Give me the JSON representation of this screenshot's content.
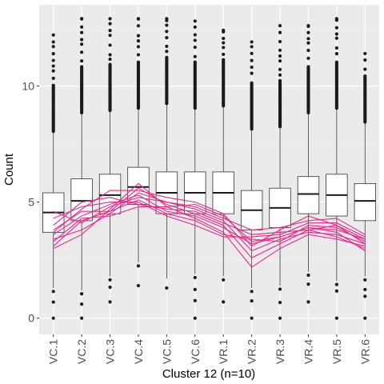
{
  "chart_data": {
    "type": "boxplot",
    "title": "",
    "xlabel": "Cluster 12 (n=10)",
    "ylabel": "Count",
    "ylim": [
      -0.7,
      13.5
    ],
    "yticks": [
      0,
      5,
      10
    ],
    "grid": true,
    "categories": [
      "VC.1",
      "VC.2",
      "VC.3",
      "VC.4",
      "VC.5",
      "VC.6",
      "VR.1",
      "VR.2",
      "VR.3",
      "VR.4",
      "VR.5",
      "VR.6"
    ],
    "boxes": [
      {
        "q1": 3.7,
        "median": 4.55,
        "q3": 5.4,
        "whisker_low": 1.3,
        "whisker_high": 8.0,
        "out_min": 0.0,
        "out_max": 12.2
      },
      {
        "q1": 4.2,
        "median": 5.05,
        "q3": 6.0,
        "whisker_low": 1.2,
        "whisker_high": 8.8,
        "out_min": 0.0,
        "out_max": 12.9
      },
      {
        "q1": 4.5,
        "median": 5.3,
        "q3": 6.2,
        "whisker_low": 1.8,
        "whisker_high": 8.9,
        "out_min": 0.7,
        "out_max": 12.9
      },
      {
        "q1": 4.9,
        "median": 5.65,
        "q3": 6.5,
        "whisker_low": 2.4,
        "whisker_high": 9.0,
        "out_min": 1.4,
        "out_max": 12.9
      },
      {
        "q1": 4.5,
        "median": 5.4,
        "q3": 6.3,
        "whisker_low": 1.7,
        "whisker_high": 9.2,
        "out_min": 1.3,
        "out_max": 12.9
      },
      {
        "q1": 4.5,
        "median": 5.4,
        "q3": 6.3,
        "whisker_low": 1.9,
        "whisker_high": 9.0,
        "out_min": 0.0,
        "out_max": 12.8
      },
      {
        "q1": 4.5,
        "median": 5.4,
        "q3": 6.3,
        "whisker_low": 1.8,
        "whisker_high": 9.1,
        "out_min": 0.7,
        "out_max": 12.4
      },
      {
        "q1": 3.8,
        "median": 4.65,
        "q3": 5.5,
        "whisker_low": 1.3,
        "whisker_high": 8.1,
        "out_min": 0.0,
        "out_max": 11.9
      },
      {
        "q1": 3.9,
        "median": 4.75,
        "q3": 5.6,
        "whisker_low": 1.4,
        "whisker_high": 8.2,
        "out_min": 0.0,
        "out_max": 12.6
      },
      {
        "q1": 4.5,
        "median": 5.35,
        "q3": 6.1,
        "whisker_low": 2.0,
        "whisker_high": 8.8,
        "out_min": 0.7,
        "out_max": 12.6
      },
      {
        "q1": 4.4,
        "median": 5.3,
        "q3": 6.2,
        "whisker_low": 1.6,
        "whisker_high": 9.0,
        "out_min": 0.0,
        "out_max": 12.9
      },
      {
        "q1": 4.2,
        "median": 5.05,
        "q3": 5.8,
        "whisker_low": 1.8,
        "whisker_high": 8.4,
        "out_min": 0.0,
        "out_max": 11.4
      }
    ],
    "series_color": "#e7298a",
    "series": [
      {
        "values": [
          3.0,
          3.6,
          4.7,
          5.8,
          4.8,
          4.3,
          3.7,
          2.2,
          3.0,
          3.6,
          3.4,
          3.1
        ]
      },
      {
        "values": [
          3.1,
          4.2,
          4.6,
          5.6,
          4.9,
          4.5,
          4.0,
          2.6,
          3.2,
          3.8,
          3.5,
          3.0
        ]
      },
      {
        "values": [
          3.4,
          3.8,
          4.5,
          5.4,
          5.0,
          4.7,
          4.2,
          2.9,
          3.4,
          3.7,
          3.6,
          3.2
        ]
      },
      {
        "values": [
          3.6,
          4.4,
          4.9,
          5.3,
          4.6,
          4.4,
          3.9,
          3.2,
          3.5,
          3.9,
          3.8,
          3.4
        ]
      },
      {
        "values": [
          3.8,
          4.6,
          4.6,
          5.1,
          4.5,
          4.2,
          3.6,
          3.4,
          3.3,
          4.0,
          3.9,
          3.3
        ]
      },
      {
        "values": [
          4.3,
          4.8,
          5.0,
          5.0,
          4.4,
          4.0,
          3.5,
          3.5,
          3.6,
          4.1,
          4.1,
          3.5
        ]
      },
      {
        "values": [
          4.0,
          5.0,
          5.2,
          4.9,
          4.7,
          4.6,
          4.1,
          3.6,
          3.7,
          3.8,
          4.0,
          3.2
        ]
      },
      {
        "values": [
          4.6,
          4.1,
          4.8,
          5.2,
          5.0,
          4.8,
          4.3,
          3.8,
          3.9,
          4.2,
          4.3,
          3.6
        ]
      },
      {
        "values": [
          3.7,
          4.7,
          5.5,
          5.5,
          5.2,
          5.0,
          4.5,
          3.1,
          3.8,
          4.4,
          4.0,
          3.4
        ]
      },
      {
        "values": [
          3.3,
          4.3,
          4.4,
          4.8,
          4.8,
          4.9,
          4.4,
          3.3,
          3.5,
          3.9,
          3.7,
          2.9
        ]
      }
    ]
  }
}
